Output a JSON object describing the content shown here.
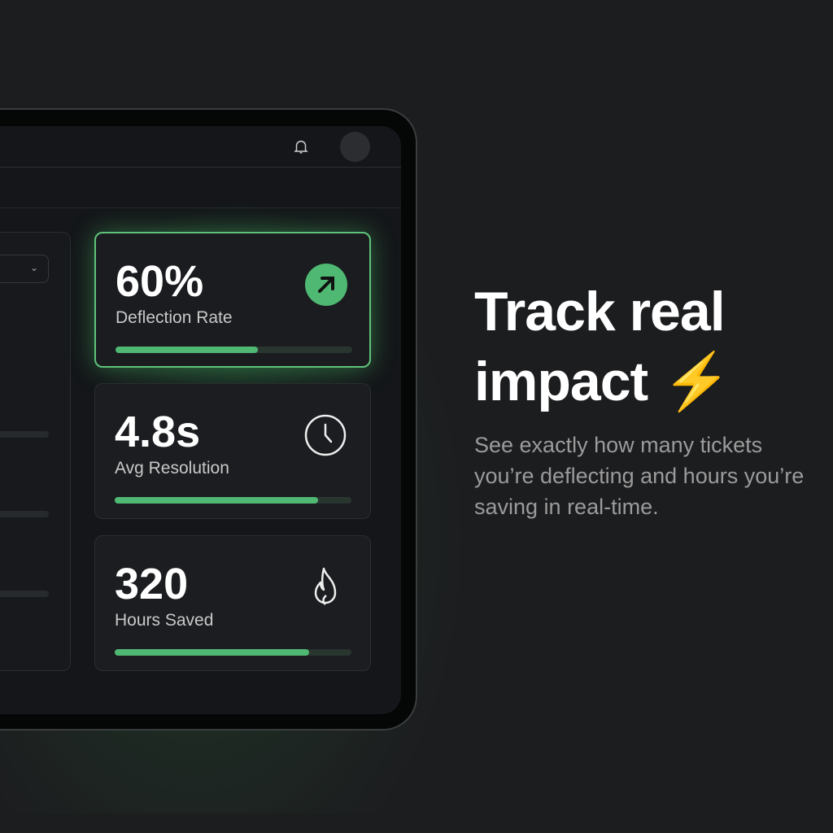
{
  "header": {
    "bell_icon": "bell-icon",
    "avatar": "avatar"
  },
  "metrics": [
    {
      "value": "60%",
      "label": "Deflection Rate",
      "progress": 0.6,
      "icon": "arrow-up-right-icon"
    },
    {
      "value": "4.8s",
      "label": "Avg Resolution",
      "progress": 0.86,
      "icon": "clock-icon"
    },
    {
      "value": "320",
      "label": "Hours Saved",
      "progress": 0.82,
      "icon": "flame-icon"
    }
  ],
  "colors": {
    "accent": "#4fb872",
    "background": "#1c1d1f"
  },
  "marketing": {
    "heading_line1": "Track real",
    "heading_line2": "impact",
    "emoji": "⚡",
    "body": "See exactly how many tickets you’re deflecting and hours you’re saving in real-time."
  }
}
